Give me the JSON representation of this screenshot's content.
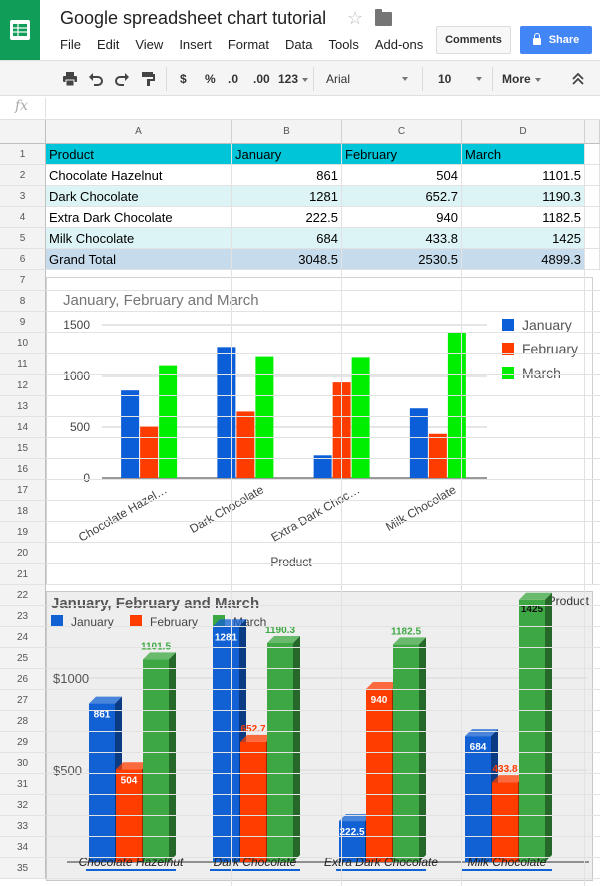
{
  "app": {
    "doc_title": "Google spreadsheet chart tutorial",
    "menu": [
      "File",
      "Edit",
      "View",
      "Insert",
      "Format",
      "Data",
      "Tools",
      "Add-ons"
    ],
    "comments_label": "Comments",
    "share_label": "Share"
  },
  "toolbar": {
    "currency": "$",
    "percent": "%",
    "dec_decrease": ".0",
    "dec_increase": ".00",
    "more_formats": "123",
    "font": "Arial",
    "font_size": "10",
    "more": "More",
    "fx_label": "fx"
  },
  "sheet": {
    "columns": [
      "A",
      "B",
      "C",
      "D"
    ],
    "row_numbers": [
      "1",
      "2",
      "3",
      "4",
      "5",
      "6",
      "7",
      "8",
      "9",
      "10",
      "11",
      "12",
      "13",
      "14",
      "15",
      "16",
      "17",
      "18",
      "19",
      "20",
      "21",
      "22",
      "23",
      "24",
      "25",
      "26",
      "27",
      "28",
      "29",
      "30",
      "31",
      "32",
      "33",
      "34",
      "35"
    ],
    "header": [
      "Product",
      "January",
      "February",
      "March"
    ],
    "rows": [
      [
        "Chocolate Hazelnut",
        "861",
        "504",
        "1101.5"
      ],
      [
        "Dark Chocolate",
        "1281",
        "652.7",
        "1190.3"
      ],
      [
        "Extra Dark Chocolate",
        "222.5",
        "940",
        "1182.5"
      ],
      [
        "Milk Chocolate",
        "684",
        "433.8",
        "1425"
      ],
      [
        "Grand Total",
        "3048.5",
        "2530.5",
        "4899.3"
      ]
    ],
    "colors": {
      "header_bg": "#00c4d8",
      "alt_bg": "#ddf4f6",
      "total_bg": "#c6dcec"
    }
  },
  "chart_data": [
    {
      "type": "bar",
      "title": "January, February and March",
      "xlabel": "Product",
      "ylabel": "",
      "ylim": [
        0,
        1500
      ],
      "yticks": [
        "0",
        "500",
        "1000",
        "1500"
      ],
      "categories": [
        "Chocolate Hazelnut",
        "Dark Chocolate",
        "Extra Dark Chocolate",
        "Milk Chocolate"
      ],
      "category_labels": [
        "Chocolate Hazel…",
        "Dark Chocolate",
        "Extra Dark Choc…",
        "Milk Chocolate"
      ],
      "series": [
        {
          "name": "January",
          "values": [
            861,
            1281,
            222.5,
            684
          ],
          "color": "#0b5ed7"
        },
        {
          "name": "February",
          "values": [
            504,
            652.7,
            940,
            433.8
          ],
          "color": "#ff3c00"
        },
        {
          "name": "March",
          "values": [
            1101.5,
            1190.3,
            1182.5,
            1425
          ],
          "color": "#00ee00"
        }
      ],
      "legend": "right"
    },
    {
      "type": "bar",
      "title": "January, February and March",
      "corner_label": "Product",
      "ylabel": "",
      "ylim": [
        0,
        1500
      ],
      "yticks": [
        "$500",
        "$1000"
      ],
      "yticks_values": [
        500,
        1000
      ],
      "categories": [
        "Chocolate Hazelnut",
        "Dark Chocolate",
        "Extra Dark Chocolate",
        "Milk Chocolate"
      ],
      "series": [
        {
          "name": "January",
          "values": [
            861,
            1281,
            222.5,
            684
          ],
          "labels": [
            "861",
            "1281",
            "222.5",
            "684"
          ],
          "color": "#1160d4"
        },
        {
          "name": "February",
          "values": [
            504,
            652.7,
            940,
            433.8
          ],
          "labels": [
            "504",
            "652.7",
            "940",
            "433.8"
          ],
          "color": "#ff3d00"
        },
        {
          "name": "March",
          "values": [
            1101.5,
            1190.3,
            1182.5,
            1425
          ],
          "labels": [
            "1101.5",
            "1190.3",
            "1182.5",
            "1425"
          ],
          "color": "#3da843"
        }
      ],
      "legend": "top-left"
    }
  ]
}
